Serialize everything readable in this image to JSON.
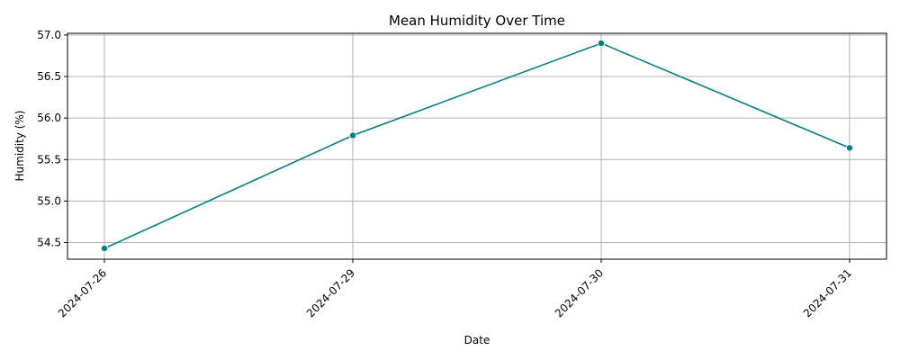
{
  "chart_data": {
    "type": "line",
    "title": "Mean Humidity Over Time",
    "xlabel": "Date",
    "ylabel": "Humidity (%)",
    "categories": [
      "2024-07-26",
      "2024-07-29",
      "2024-07-30",
      "2024-07-31"
    ],
    "series": [
      {
        "name": "Humidity",
        "values": [
          54.43,
          55.79,
          56.9,
          55.64
        ],
        "color": "#008080",
        "marker": "circle"
      }
    ],
    "ylim": [
      54.3,
      57.02
    ],
    "yticks": [
      54.5,
      55.0,
      55.5,
      56.0,
      56.5,
      57.0
    ],
    "ytick_labels": [
      "54.5",
      "55.0",
      "55.5",
      "56.0",
      "56.5",
      "57.0"
    ],
    "grid": true,
    "legend": "none",
    "xtick_rotation": 45
  }
}
